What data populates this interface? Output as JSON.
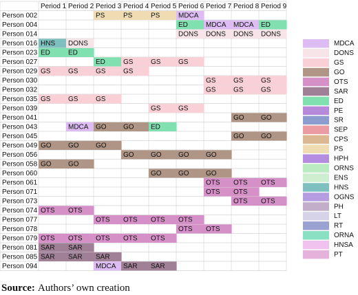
{
  "table": {
    "columns": [
      "Period 1",
      "Period 2",
      "Period 3",
      "Period 4",
      "Period 5",
      "Period 6",
      "Period 7",
      "Period 8",
      "Period 9"
    ],
    "rows": [
      {
        "person": "Person 002",
        "cells": [
          null,
          null,
          "PS",
          "PS",
          "PS",
          "MDCA",
          null,
          null,
          null
        ]
      },
      {
        "person": "Person 004",
        "cells": [
          null,
          null,
          null,
          null,
          null,
          "ED",
          "MDCA",
          "MDCA",
          "ED"
        ]
      },
      {
        "person": "Person 014",
        "cells": [
          null,
          null,
          null,
          null,
          null,
          "DONS",
          "DONS",
          "DONS",
          "DONS"
        ]
      },
      {
        "person": "Person 016",
        "cells": [
          "HNS",
          "DONS",
          null,
          null,
          null,
          null,
          null,
          null,
          null
        ]
      },
      {
        "person": "Person 023",
        "cells": [
          "ED",
          "ED",
          null,
          null,
          null,
          null,
          null,
          null,
          null
        ]
      },
      {
        "person": "Person 027",
        "cells": [
          null,
          null,
          "ED",
          "GS",
          "GS",
          "GS",
          null,
          null,
          null
        ]
      },
      {
        "person": "Person 029",
        "cells": [
          "GS",
          "GS",
          "GS",
          "GS",
          null,
          null,
          null,
          null,
          null
        ]
      },
      {
        "person": "Person 030",
        "cells": [
          null,
          null,
          null,
          null,
          null,
          null,
          "GS",
          "GS",
          "GS"
        ]
      },
      {
        "person": "Person 032",
        "cells": [
          null,
          null,
          null,
          null,
          null,
          null,
          "GS",
          "GS",
          "GS"
        ]
      },
      {
        "person": "Person 035",
        "cells": [
          "GS",
          "GS",
          "GS",
          null,
          null,
          null,
          null,
          null,
          null
        ]
      },
      {
        "person": "Person 039",
        "cells": [
          null,
          null,
          null,
          null,
          "GS",
          "GS",
          null,
          null,
          null
        ]
      },
      {
        "person": "Person 041",
        "cells": [
          null,
          null,
          null,
          null,
          null,
          null,
          null,
          "GO",
          "GO"
        ]
      },
      {
        "person": "Person 043",
        "cells": [
          null,
          "MDCA",
          "GO",
          "GO",
          "ED",
          null,
          null,
          null,
          null
        ]
      },
      {
        "person": "Person 045",
        "cells": [
          null,
          null,
          null,
          null,
          null,
          null,
          null,
          "GO",
          "GO"
        ]
      },
      {
        "person": "Person 049",
        "cells": [
          "GO",
          "GO",
          "GO",
          null,
          null,
          null,
          null,
          null,
          null
        ]
      },
      {
        "person": "Person 056",
        "cells": [
          null,
          null,
          null,
          "GO",
          "GO",
          "GO",
          "GO",
          null,
          null
        ]
      },
      {
        "person": "Person 058",
        "cells": [
          "GO",
          "GO",
          null,
          null,
          null,
          null,
          null,
          null,
          null
        ]
      },
      {
        "person": "Person 060",
        "cells": [
          null,
          null,
          null,
          null,
          "GO",
          "GO",
          "GO",
          null,
          null
        ]
      },
      {
        "person": "Person 061",
        "cells": [
          null,
          null,
          null,
          null,
          null,
          null,
          "OTS",
          "OTS",
          "OTS"
        ]
      },
      {
        "person": "Person 071",
        "cells": [
          null,
          null,
          null,
          null,
          null,
          null,
          "OTS",
          "OTS",
          null
        ]
      },
      {
        "person": "Person 073",
        "cells": [
          null,
          null,
          null,
          null,
          null,
          null,
          null,
          "OTS",
          "OTS"
        ]
      },
      {
        "person": "Person 074",
        "cells": [
          "OTS",
          "OTS",
          null,
          null,
          null,
          null,
          null,
          null,
          null
        ]
      },
      {
        "person": "Person 077",
        "cells": [
          null,
          null,
          "OTS",
          "OTS",
          "OTS",
          "OTS",
          null,
          null,
          null
        ]
      },
      {
        "person": "Person 078",
        "cells": [
          null,
          null,
          null,
          null,
          null,
          "OTS",
          "OTS",
          null,
          null
        ]
      },
      {
        "person": "Person 079",
        "cells": [
          "OTS",
          "OTS",
          "OTS",
          "OTS",
          "OTS",
          null,
          null,
          null,
          null
        ]
      },
      {
        "person": "Person 081",
        "cells": [
          "SAR",
          "SAR",
          null,
          null,
          null,
          null,
          null,
          null,
          null
        ]
      },
      {
        "person": "Person 085",
        "cells": [
          "SAR",
          "SAR",
          "SAR",
          null,
          null,
          null,
          null,
          null,
          null
        ]
      },
      {
        "person": "Person 094",
        "cells": [
          null,
          null,
          "MDCA",
          "SAR",
          "SAR",
          null,
          null,
          null,
          null
        ]
      }
    ]
  },
  "legend": [
    {
      "code": "MDCA",
      "color": "#dcbcf2"
    },
    {
      "code": "DONS",
      "color": "#f6e4e8"
    },
    {
      "code": "GS",
      "color": "#f9d0d5"
    },
    {
      "code": "GO",
      "color": "#ae9585"
    },
    {
      "code": "OTS",
      "color": "#d690c8"
    },
    {
      "code": "SAR",
      "color": "#a08097"
    },
    {
      "code": "ED",
      "color": "#80e0b0"
    },
    {
      "code": "PE",
      "color": "#b68ad8"
    },
    {
      "code": "SR",
      "color": "#8c9ccf"
    },
    {
      "code": "SEP",
      "color": "#ea9ca2"
    },
    {
      "code": "CPS",
      "color": "#dcb892"
    },
    {
      "code": "PS",
      "color": "#efdcb2"
    },
    {
      "code": "HPH",
      "color": "#b48ce0"
    },
    {
      "code": "ORNS",
      "color": "#baecc2"
    },
    {
      "code": "ENS",
      "color": "#cdeecf"
    },
    {
      "code": "HNS",
      "color": "#7ebfc0"
    },
    {
      "code": "OGNS",
      "color": "#b69ce0"
    },
    {
      "code": "PH",
      "color": "#c2aec9"
    },
    {
      "code": "LT",
      "color": "#d6d2e8"
    },
    {
      "code": "RT",
      "color": "#9aa2d2"
    },
    {
      "code": "ORNA",
      "color": "#8ae0c2"
    },
    {
      "code": "HNSA",
      "color": "#f0c2ee"
    },
    {
      "code": "PT",
      "color": "#e4b2da"
    }
  ],
  "caption": {
    "label": "Source:",
    "text": "Authors’ own creation"
  }
}
